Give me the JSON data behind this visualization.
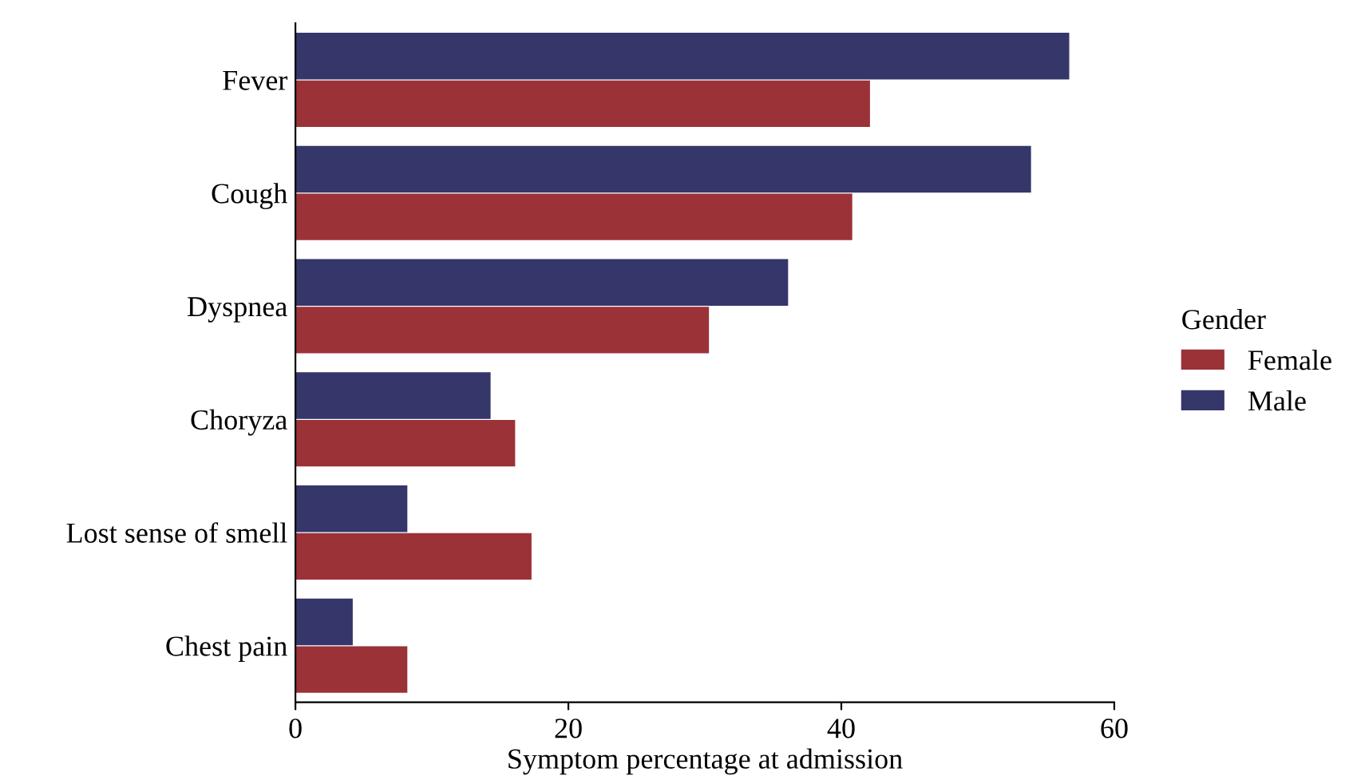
{
  "chart_data": {
    "type": "bar",
    "orientation": "horizontal",
    "xlabel": "Symptom percentage at admission",
    "categories": [
      "Fever",
      "Cough",
      "Dyspnea",
      "Choryza",
      "Lost sense of smell",
      "Chest pain"
    ],
    "series": [
      {
        "name": "Female",
        "color": "#9b3238",
        "values": [
          42.1,
          40.8,
          30.3,
          16.1,
          17.3,
          8.2
        ]
      },
      {
        "name": "Male",
        "color": "#35366a",
        "values": [
          56.7,
          53.9,
          36.1,
          14.3,
          8.2,
          4.2
        ]
      }
    ],
    "legend_title": "Gender",
    "legend": "right",
    "xlim": [
      0,
      60
    ],
    "xticks": [
      0,
      20,
      40,
      60
    ],
    "grid": false
  }
}
